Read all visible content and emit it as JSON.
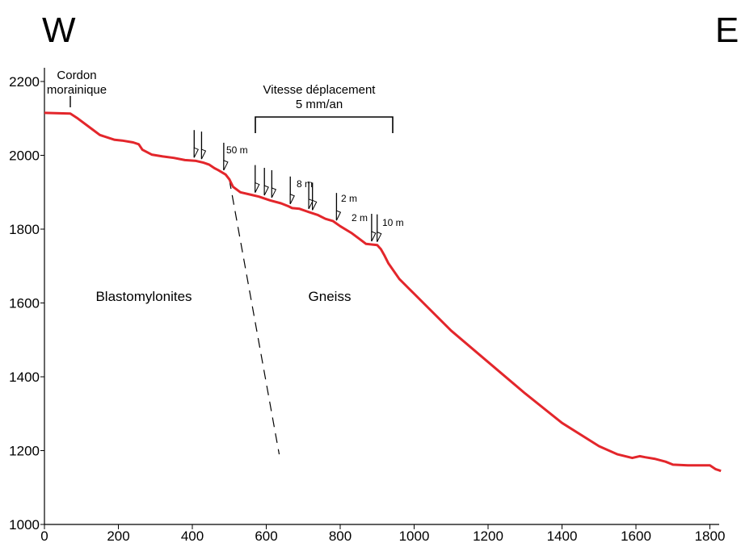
{
  "directions": {
    "west": "W",
    "east": "E"
  },
  "chart_data": {
    "type": "line",
    "title": "",
    "xlabel": "",
    "ylabel": "",
    "xlim": [
      0,
      1850
    ],
    "ylim": [
      1000,
      2200
    ],
    "xticks": [
      0,
      200,
      400,
      600,
      800,
      1000,
      1200,
      1400,
      1600,
      1800
    ],
    "yticks": [
      1000,
      1200,
      1400,
      1600,
      1800,
      2000,
      2200
    ],
    "series": [
      {
        "color": "#e3262b",
        "x": [
          0,
          70,
          90,
          130,
          150,
          190,
          210,
          240,
          255,
          265,
          290,
          320,
          350,
          380,
          410,
          430,
          445,
          460,
          470,
          490,
          500,
          510,
          530,
          560,
          580,
          610,
          640,
          660,
          670,
          690,
          710,
          740,
          760,
          780,
          800,
          830,
          850,
          870,
          890,
          900,
          910,
          920,
          930,
          960,
          1000,
          1100,
          1200,
          1300,
          1400,
          1500,
          1550,
          1590,
          1610,
          1625,
          1650,
          1680,
          1700,
          1740,
          1760,
          1800,
          1815,
          1830
        ],
        "y": [
          2115,
          2113,
          2100,
          2070,
          2055,
          2042,
          2040,
          2035,
          2030,
          2015,
          2002,
          1997,
          1993,
          1987,
          1985,
          1980,
          1975,
          1965,
          1960,
          1948,
          1935,
          1915,
          1900,
          1893,
          1888,
          1878,
          1870,
          1862,
          1857,
          1855,
          1848,
          1838,
          1828,
          1822,
          1808,
          1790,
          1775,
          1760,
          1758,
          1757,
          1746,
          1728,
          1708,
          1665,
          1625,
          1525,
          1440,
          1355,
          1275,
          1212,
          1190,
          1180,
          1185,
          1182,
          1178,
          1170,
          1162,
          1160,
          1160,
          1160,
          1150,
          1145
        ]
      }
    ],
    "annotations": [
      {
        "text": "Cordon\nmorainique",
        "x": 72,
        "y": 2115,
        "kind": "tick"
      },
      {
        "text": "Vitesse déplacement\n5 mm/an",
        "x_range": [
          565,
          940
        ],
        "kind": "bracket"
      },
      {
        "text": "Blastomylonites",
        "x": 260,
        "y": 1600
      },
      {
        "text": "Gneiss",
        "x": 760,
        "y": 1600
      },
      {
        "text": "50 m",
        "x": 485,
        "y": 1970,
        "kind": "fault-arrow"
      },
      {
        "text": "8 m",
        "x": 670,
        "y": 1870,
        "kind": "fault-arrow"
      },
      {
        "text": "2 m",
        "x": 790,
        "y": 1830,
        "kind": "fault-arrow"
      },
      {
        "text": "2 m",
        "x": 885,
        "y": 1770,
        "kind": "fault-arrow"
      },
      {
        "text": "10 m",
        "x": 910,
        "y": 1770,
        "kind": "fault-arrow"
      }
    ],
    "fault_arrows_x": [
      405,
      425,
      485,
      570,
      595,
      615,
      665,
      715,
      725,
      790,
      885,
      900
    ],
    "contact_line": {
      "from": [
        500,
        1935
      ],
      "to": [
        635,
        1190
      ],
      "style": "dashed"
    }
  },
  "labels": {
    "cordon_line1": "Cordon",
    "cordon_line2": "morainique",
    "vitesse_line1": "Vitesse déplacement",
    "vitesse_line2": "5 mm/an",
    "blasto": "Blastomylonites",
    "gneiss": "Gneiss",
    "d50": "50 m",
    "d8": "8 m",
    "d2a": "2 m",
    "d2b": "2 m",
    "d10": "10 m"
  }
}
